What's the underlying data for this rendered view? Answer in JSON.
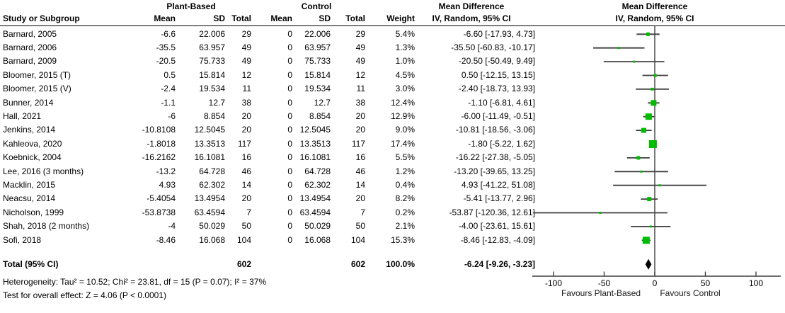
{
  "colors": {
    "marker_green": "#00bc00",
    "diamond_black": "#000000",
    "line_gray": "#3f3f3f",
    "text_black": "#000000",
    "background": "#ffffff"
  },
  "headers": {
    "group_plant": "Plant-Based",
    "group_control": "Control",
    "md_text_title": "Mean Difference",
    "md_plot_title": "Mean Difference",
    "md_subtitle": "IV, Random, 95% CI",
    "study": "Study or Subgroup",
    "mean": "Mean",
    "sd": "SD",
    "total": "Total",
    "weight": "Weight"
  },
  "chart_data": {
    "type": "scatter",
    "variant": "forest-plot-mean-difference",
    "effect_measure": "Mean Difference",
    "effect_model": "IV, Random, 95% CI",
    "x_ticks": [
      -100,
      -50,
      0,
      50,
      100
    ],
    "xlim": [
      -121,
      124
    ],
    "favours_left": "Favours Plant-Based",
    "favours_right": "Favours Control",
    "studies": [
      {
        "name": "Barnard, 2005",
        "mean": "-6.6",
        "sd": "22.006",
        "total": "29",
        "control_mean": "0",
        "control_sd": "22.006",
        "control_total": "29",
        "weight": "5.4%",
        "ci_text": "-6.60 [-17.93, 4.73]",
        "md": -6.6,
        "ci_low": -17.93,
        "ci_high": 4.73,
        "weight_pct": 5.4
      },
      {
        "name": "Barnard, 2006",
        "mean": "-35.5",
        "sd": "63.957",
        "total": "49",
        "control_mean": "0",
        "control_sd": "63.957",
        "control_total": "49",
        "weight": "1.3%",
        "ci_text": "-35.50 [-60.83, -10.17]",
        "md": -35.5,
        "ci_low": -60.83,
        "ci_high": -10.17,
        "weight_pct": 1.3
      },
      {
        "name": "Barnard, 2009",
        "mean": "-20.5",
        "sd": "75.733",
        "total": "49",
        "control_mean": "0",
        "control_sd": "75.733",
        "control_total": "49",
        "weight": "1.0%",
        "ci_text": "-20.50 [-50.49, 9.49]",
        "md": -20.5,
        "ci_low": -50.49,
        "ci_high": 9.49,
        "weight_pct": 1.0
      },
      {
        "name": "Bloomer, 2015 (T)",
        "mean": "0.5",
        "sd": "15.814",
        "total": "12",
        "control_mean": "0",
        "control_sd": "15.814",
        "control_total": "12",
        "weight": "4.5%",
        "ci_text": "0.50 [-12.15, 13.15]",
        "md": 0.5,
        "ci_low": -12.15,
        "ci_high": 13.15,
        "weight_pct": 4.5
      },
      {
        "name": "Bloomer, 2015 (V)",
        "mean": "-2.4",
        "sd": "19.534",
        "total": "11",
        "control_mean": "0",
        "control_sd": "19.534",
        "control_total": "11",
        "weight": "3.0%",
        "ci_text": "-2.40 [-18.73, 13.93]",
        "md": -2.4,
        "ci_low": -18.73,
        "ci_high": 13.93,
        "weight_pct": 3.0
      },
      {
        "name": "Bunner, 2014",
        "mean": "-1.1",
        "sd": "12.7",
        "total": "38",
        "control_mean": "0",
        "control_sd": "12.7",
        "control_total": "38",
        "weight": "12.4%",
        "ci_text": "-1.10 [-6.81, 4.61]",
        "md": -1.1,
        "ci_low": -6.81,
        "ci_high": 4.61,
        "weight_pct": 12.4
      },
      {
        "name": "Hall, 2021",
        "mean": "-6",
        "sd": "8.854",
        "total": "20",
        "control_mean": "0",
        "control_sd": "8.854",
        "control_total": "20",
        "weight": "12.9%",
        "ci_text": "-6.00 [-11.49, -0.51]",
        "md": -6.0,
        "ci_low": -11.49,
        "ci_high": -0.51,
        "weight_pct": 12.9
      },
      {
        "name": "Jenkins, 2014",
        "mean": "-10.8108",
        "sd": "12.5045",
        "total": "20",
        "control_mean": "0",
        "control_sd": "12.5045",
        "control_total": "20",
        "weight": "9.0%",
        "ci_text": "-10.81 [-18.56, -3.06]",
        "md": -10.81,
        "ci_low": -18.56,
        "ci_high": -3.06,
        "weight_pct": 9.0
      },
      {
        "name": "Kahleova, 2020",
        "mean": "-1.8018",
        "sd": "13.3513",
        "total": "117",
        "control_mean": "0",
        "control_sd": "13.3513",
        "control_total": "117",
        "weight": "17.4%",
        "ci_text": "-1.80 [-5.22, 1.62]",
        "md": -1.8,
        "ci_low": -5.22,
        "ci_high": 1.62,
        "weight_pct": 17.4
      },
      {
        "name": "Koebnick, 2004",
        "mean": "-16.2162",
        "sd": "16.1081",
        "total": "16",
        "control_mean": "0",
        "control_sd": "16.1081",
        "control_total": "16",
        "weight": "5.5%",
        "ci_text": "-16.22 [-27.38, -5.05]",
        "md": -16.22,
        "ci_low": -27.38,
        "ci_high": -5.05,
        "weight_pct": 5.5
      },
      {
        "name": "Lee, 2016 (3 months)",
        "mean": "-13.2",
        "sd": "64.728",
        "total": "46",
        "control_mean": "0",
        "control_sd": "64.728",
        "control_total": "46",
        "weight": "1.2%",
        "ci_text": "-13.20 [-39.65, 13.25]",
        "md": -13.2,
        "ci_low": -39.65,
        "ci_high": 13.25,
        "weight_pct": 1.2
      },
      {
        "name": "Macklin, 2015",
        "mean": "4.93",
        "sd": "62.302",
        "total": "14",
        "control_mean": "0",
        "control_sd": "62.302",
        "control_total": "14",
        "weight": "0.4%",
        "ci_text": "4.93 [-41.22, 51.08]",
        "md": 4.93,
        "ci_low": -41.22,
        "ci_high": 51.08,
        "weight_pct": 0.4
      },
      {
        "name": "Neacsu, 2014",
        "mean": "-5.4054",
        "sd": "13.4954",
        "total": "20",
        "control_mean": "0",
        "control_sd": "13.4954",
        "control_total": "20",
        "weight": "8.2%",
        "ci_text": "-5.41 [-13.77, 2.96]",
        "md": -5.41,
        "ci_low": -13.77,
        "ci_high": 2.96,
        "weight_pct": 8.2
      },
      {
        "name": "Nicholson, 1999",
        "mean": "-53.8738",
        "sd": "63.4594",
        "total": "7",
        "control_mean": "0",
        "control_sd": "63.4594",
        "control_total": "7",
        "weight": "0.2%",
        "ci_text": "-53.87 [-120.36, 12.61]",
        "md": -53.87,
        "ci_low": -120.36,
        "ci_high": 12.61,
        "weight_pct": 0.2
      },
      {
        "name": "Shah, 2018 (2 months)",
        "mean": "-4",
        "sd": "50.029",
        "total": "50",
        "control_mean": "0",
        "control_sd": "50.029",
        "control_total": "50",
        "weight": "2.1%",
        "ci_text": "-4.00 [-23.61, 15.61]",
        "md": -4.0,
        "ci_low": -23.61,
        "ci_high": 15.61,
        "weight_pct": 2.1
      },
      {
        "name": "Sofi, 2018",
        "mean": "-8.46",
        "sd": "16.068",
        "total": "104",
        "control_mean": "0",
        "control_sd": "16.068",
        "control_total": "104",
        "weight": "15.3%",
        "ci_text": "-8.46 [-12.83, -4.09]",
        "md": -8.46,
        "ci_low": -12.83,
        "ci_high": -4.09,
        "weight_pct": 15.3
      }
    ],
    "total": {
      "label": "Total (95% CI)",
      "total": "602",
      "control_total": "602",
      "weight": "100.0%",
      "ci_text": "-6.24 [-9.26, -3.23]",
      "md": -6.24,
      "ci_low": -9.26,
      "ci_high": -3.23
    }
  },
  "footer": {
    "heterogeneity": "Heterogeneity: Tau² = 10.52; Chi² = 23.81, df = 15 (P = 0.07); I² = 37%",
    "overall_effect": "Test for overall effect: Z = 4.06 (P < 0.0001)"
  }
}
